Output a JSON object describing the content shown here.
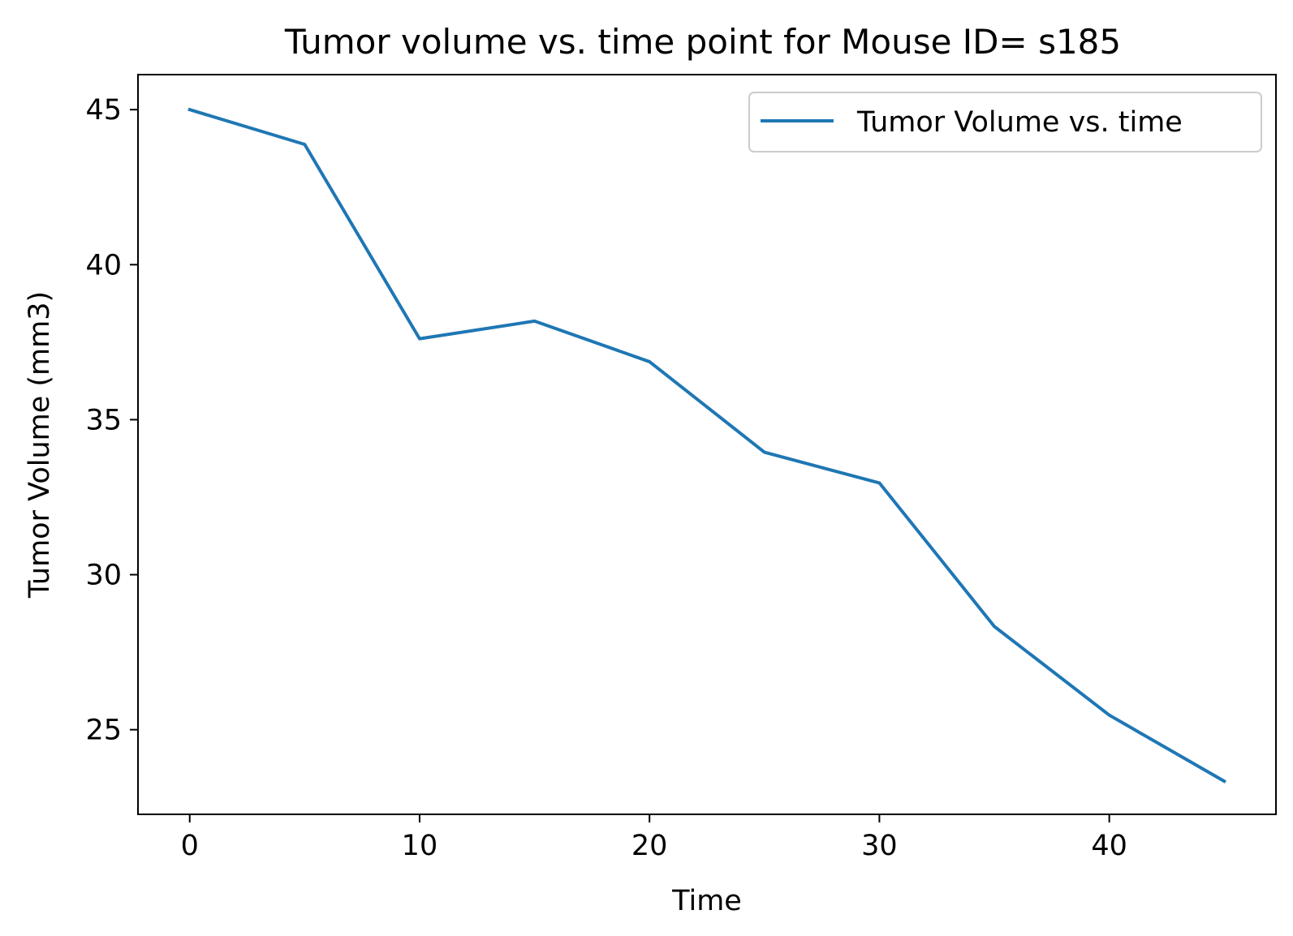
{
  "chart_data": {
    "type": "line",
    "title": "Tumor volume vs. time point for Mouse ID= s185",
    "xlabel": "Time",
    "ylabel": "Tumor Volume (mm3)",
    "xlim": [
      -2.25,
      47.25
    ],
    "ylim": [
      22.27,
      46.13
    ],
    "xticks": [
      0,
      10,
      20,
      30,
      40
    ],
    "yticks": [
      25,
      30,
      35,
      40,
      45
    ],
    "grid": false,
    "legend_position": "top-right",
    "series": [
      {
        "name": "Tumor Volume vs. time",
        "color": "#1f77b4",
        "x": [
          0,
          5,
          10,
          15,
          20,
          25,
          30,
          35,
          40,
          45
        ],
        "y": [
          45.0,
          43.88,
          37.61,
          38.18,
          36.87,
          33.95,
          32.96,
          28.33,
          25.47,
          23.34
        ]
      }
    ]
  }
}
